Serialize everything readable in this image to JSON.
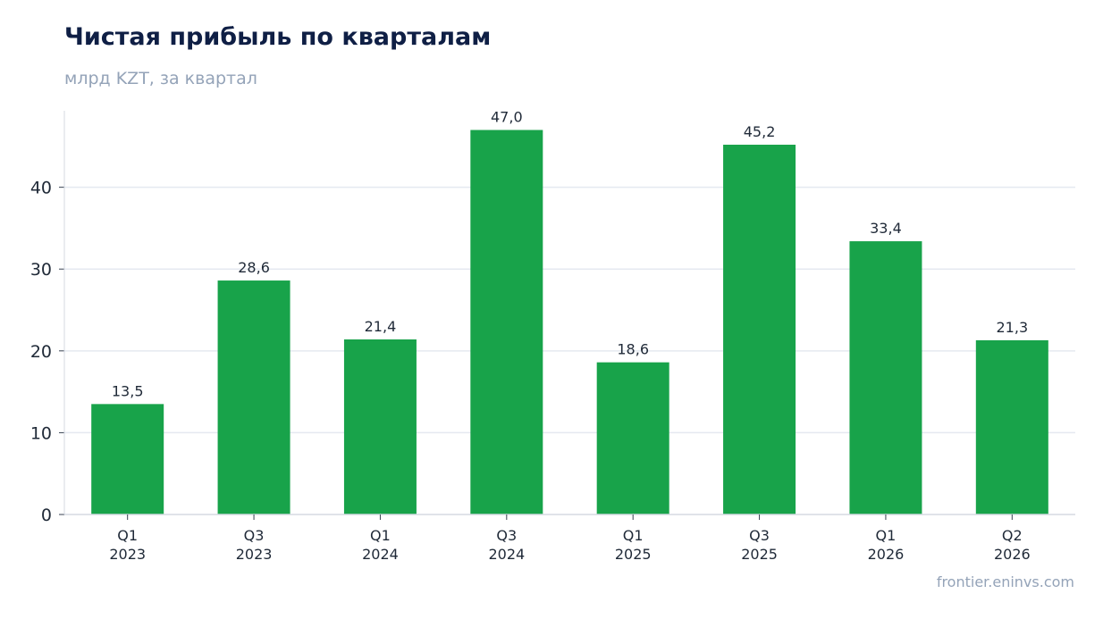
{
  "title": "Чистая прибыль по кварталам",
  "subtitle": "млрд KZT, за квартал",
  "source": "frontier.eninvs.com",
  "colors": {
    "bar": "#18a34a",
    "grid": "#e5e9f0",
    "axis": "#d5dae2"
  },
  "chart_data": {
    "type": "bar",
    "title": "Чистая прибыль по кварталам",
    "subtitle": "млрд KZT, за квартал",
    "categories": [
      [
        "Q1",
        "2023"
      ],
      [
        "Q3",
        "2023"
      ],
      [
        "Q1",
        "2024"
      ],
      [
        "Q3",
        "2024"
      ],
      [
        "Q1",
        "2025"
      ],
      [
        "Q3",
        "2025"
      ],
      [
        "Q1",
        "2026"
      ],
      [
        "Q2",
        "2026"
      ]
    ],
    "values": [
      13.5,
      28.6,
      21.4,
      47.0,
      18.6,
      45.2,
      33.4,
      21.3
    ],
    "value_labels": [
      "13,5",
      "28,6",
      "21,4",
      "47,0",
      "18,6",
      "45,2",
      "33,4",
      "21,3"
    ],
    "yticks": [
      0,
      10,
      20,
      30,
      40
    ],
    "ylim": [
      0,
      49.35
    ],
    "grid": true,
    "legend": false
  }
}
